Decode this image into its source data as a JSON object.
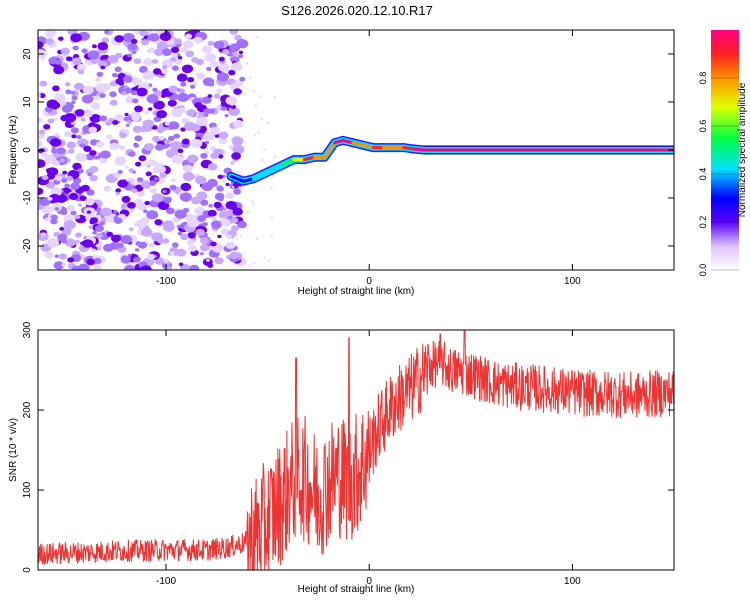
{
  "figure_title": "S126.2026.020.12.10.R17",
  "chart_data": [
    {
      "type": "heatmap",
      "title": "S126.2026.020.12.10.R17",
      "xlabel": "Height of straight line (km)",
      "ylabel": "Frequency (Hz)",
      "xlim": [
        -163,
        150
      ],
      "ylim": [
        -25,
        25
      ],
      "xticks": [
        -100,
        0,
        100
      ],
      "yticks": [
        -20,
        -10,
        0,
        10,
        20
      ],
      "colorbar": {
        "label": "Normalized spectral amplitude",
        "range": [
          0,
          1
        ],
        "ticks": [
          0.0,
          0.2,
          0.4,
          0.6,
          0.8
        ]
      },
      "noise_region_x": [
        -163,
        -68
      ],
      "signal_track": {
        "x": [
          -68,
          -62,
          -57,
          -52,
          -47,
          -42,
          -37,
          -32,
          -27,
          -22,
          -17,
          -13,
          -8,
          -3,
          2,
          7,
          12,
          17,
          22,
          27,
          150
        ],
        "freq": [
          -5.5,
          -6.5,
          -6.0,
          -5.0,
          -4.0,
          -3.0,
          -2.0,
          -2.0,
          -1.5,
          -1.5,
          1.5,
          2.0,
          1.5,
          1.0,
          0.5,
          0.5,
          0.5,
          0.5,
          0.2,
          0.0,
          0.0
        ],
        "amp": [
          0.25,
          0.3,
          0.3,
          0.35,
          0.35,
          0.4,
          0.5,
          0.8,
          0.85,
          0.7,
          0.9,
          0.95,
          0.9,
          0.7,
          0.8,
          0.85,
          0.6,
          0.8,
          0.95,
          0.98,
          0.98
        ]
      }
    },
    {
      "type": "line",
      "xlabel": "Height of straight line (km)",
      "ylabel": "SNR (10 * v/v)",
      "xlim": [
        -163,
        150
      ],
      "ylim": [
        0,
        300
      ],
      "xticks": [
        -100,
        0,
        100
      ],
      "yticks": [
        0,
        100,
        200,
        300
      ],
      "color": "#ee3333",
      "series": [
        {
          "name": "SNR",
          "x": [
            -163,
            -140,
            -120,
            -100,
            -80,
            -70,
            -60,
            -55,
            -50,
            -45,
            -40,
            -35,
            -30,
            -25,
            -20,
            -15,
            -10,
            -5,
            0,
            5,
            10,
            15,
            20,
            25,
            30,
            35,
            40,
            50,
            60,
            70,
            80,
            90,
            100,
            110,
            120,
            130,
            140,
            150
          ],
          "y": [
            20,
            22,
            24,
            25,
            25,
            28,
            35,
            45,
            60,
            80,
            100,
            120,
            110,
            90,
            110,
            120,
            110,
            125,
            150,
            180,
            200,
            215,
            225,
            240,
            255,
            260,
            250,
            245,
            235,
            230,
            228,
            225,
            222,
            220,
            220,
            218,
            220,
            222
          ]
        }
      ],
      "annotated_peaks": [
        {
          "x": -36,
          "y": 265
        },
        {
          "x": -10,
          "y": 290
        },
        {
          "x": 35,
          "y": 295
        },
        {
          "x": 47,
          "y": 300
        }
      ]
    }
  ]
}
